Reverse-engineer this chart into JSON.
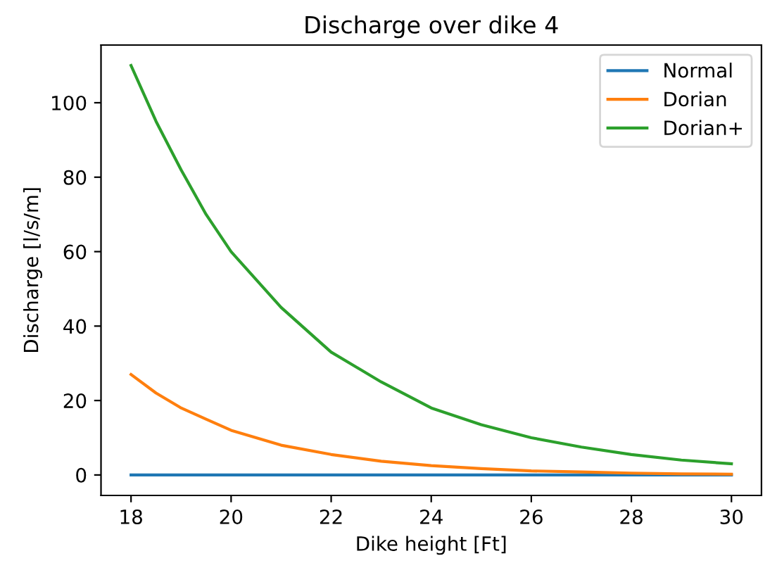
{
  "chart_data": {
    "type": "line",
    "title": "Discharge over dike 4",
    "xlabel": "Dike height [Ft]",
    "ylabel": "Discharge [l/s/m]",
    "x": [
      18,
      18.5,
      19,
      19.5,
      20,
      21,
      22,
      23,
      24,
      25,
      26,
      27,
      28,
      29,
      30
    ],
    "series": [
      {
        "name": "Normal",
        "color": "#1f77b4",
        "values": [
          0,
          0,
          0,
          0,
          0,
          0,
          0,
          0,
          0,
          0,
          0,
          0,
          0,
          0,
          0
        ]
      },
      {
        "name": "Dorian",
        "color": "#ff7f0e",
        "values": [
          27,
          22,
          18,
          15,
          12,
          8,
          5.5,
          3.7,
          2.5,
          1.7,
          1.1,
          0.8,
          0.5,
          0.3,
          0.2
        ]
      },
      {
        "name": "Dorian+",
        "color": "#2ca02c",
        "values": [
          110,
          95,
          82,
          70,
          60,
          45,
          33,
          25,
          18,
          13.5,
          10,
          7.5,
          5.5,
          4,
          3
        ]
      }
    ],
    "xlim": [
      17.4,
      30.6
    ],
    "ylim": [
      -5.5,
      115.5
    ],
    "xticks": [
      18,
      20,
      22,
      24,
      26,
      28,
      30
    ],
    "yticks": [
      0,
      20,
      40,
      60,
      80,
      100
    ],
    "grid": false,
    "legend": "top right",
    "marker": "none",
    "line_style": "solid"
  }
}
